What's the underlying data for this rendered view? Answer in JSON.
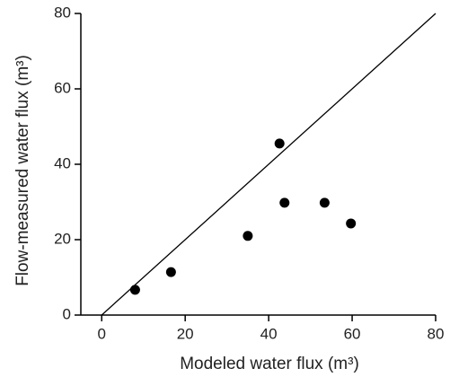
{
  "chart_data": {
    "type": "scatter",
    "x_label": "Modeled water flux (m³)",
    "y_label": "Flow-measured water flux (m³)",
    "x": [
      8,
      16.6,
      35,
      42.6,
      43.8,
      53.4,
      59.7
    ],
    "y": [
      6.7,
      11.4,
      21,
      45.5,
      29.8,
      29.8,
      24.3
    ],
    "color": "#000000",
    "reference_line": {
      "x": [
        0,
        80
      ],
      "y": [
        0,
        80
      ]
    },
    "xlim": [
      -5,
      80
    ],
    "xticks": [
      0,
      20,
      40,
      60,
      80
    ],
    "ylim": [
      0,
      80
    ],
    "yticks": [
      0,
      20,
      40,
      60,
      80
    ],
    "grid": false
  }
}
